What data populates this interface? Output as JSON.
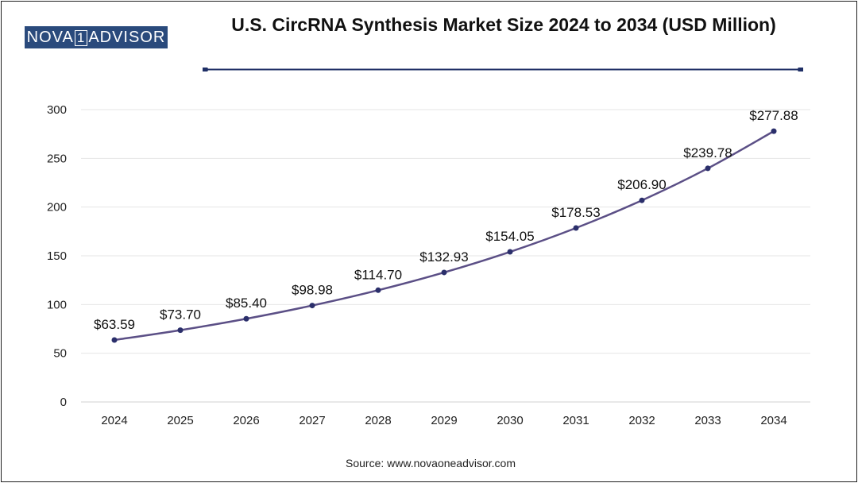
{
  "brand": {
    "logo_left": "NOVA",
    "logo_mark": "1",
    "logo_right": "ADVISOR"
  },
  "source_text": "Source: www.novaoneadvisor.com",
  "colors": {
    "line": "#5b4f86",
    "marker": "#2b2f6b",
    "title_rule": "#1f2f66",
    "grid": "#e6e6e6",
    "logo_bg": "#2a4a7c"
  },
  "chart_data": {
    "type": "line",
    "title": "U.S. CircRNA Synthesis Market Size 2024 to 2034 (USD Million)",
    "xlabel": "",
    "ylabel": "",
    "x": [
      "2024",
      "2025",
      "2026",
      "2027",
      "2028",
      "2029",
      "2030",
      "2031",
      "2032",
      "2033",
      "2034"
    ],
    "values": [
      63.59,
      73.7,
      85.4,
      98.98,
      114.7,
      132.93,
      154.05,
      178.53,
      206.9,
      239.78,
      277.88
    ],
    "data_labels": [
      "$63.59",
      "$73.70",
      "$85.40",
      "$98.98",
      "$114.70",
      "$132.93",
      "$154.05",
      "$178.53",
      "$206.90",
      "$239.78",
      "$277.88"
    ],
    "ylim": [
      0,
      300
    ],
    "yticks": [
      0,
      50,
      100,
      150,
      200,
      250,
      300
    ],
    "grid": true,
    "legend": "none"
  }
}
